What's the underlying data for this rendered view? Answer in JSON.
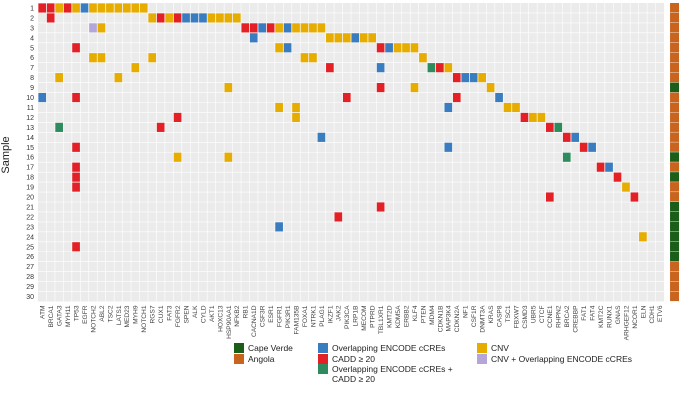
{
  "chart_data": {
    "type": "heatmap",
    "title": "",
    "ylabel": "Sample",
    "xlabel": "",
    "genes": [
      "ATM",
      "BRCA1",
      "GATA3",
      "MYH11",
      "TP53",
      "EGFR",
      "NOTCH2",
      "ABL2",
      "TSC2",
      "LATS1",
      "MED23",
      "MYH9",
      "NOTCH1",
      "RGS7",
      "CUX1",
      "FAT3",
      "FGFR2",
      "SPEN",
      "ALK",
      "CYLD",
      "AKT1",
      "HOXC13",
      "HSP90AA1",
      "NFKB2",
      "RB1",
      "CACNA1D",
      "CSF3R",
      "ESR1",
      "FGFR1",
      "PIK3R1",
      "FAM135B",
      "FOXA1",
      "NTRK1",
      "PLAG1",
      "IKZF1",
      "JAK2",
      "PIK3CA",
      "LRP1B",
      "MECOM",
      "PTPRD",
      "TBL1XR1",
      "KMT2D",
      "KDM5A",
      "ERBB2",
      "KLF4",
      "PTEN",
      "MDM4",
      "CDKN1B",
      "MAP3K4",
      "CDKN2A",
      "NF1",
      "CSF1R",
      "DNMT3A",
      "KRAS",
      "CASP8",
      "TSC1",
      "FBXW7",
      "CSMD3",
      "UBR5",
      "CTCF",
      "CCNE1",
      "RHPN2",
      "BRCA2",
      "CREBBP",
      "FAT1",
      "FAT4",
      "KMT2C",
      "RUNX1",
      "GNAS",
      "ARHGEF12",
      "NCOR1",
      "ELN",
      "CDH1",
      "ETV6"
    ],
    "samples": [
      "1",
      "2",
      "3",
      "4",
      "5",
      "6",
      "7",
      "8",
      "9",
      "10",
      "11",
      "12",
      "13",
      "14",
      "15",
      "16",
      "17",
      "18",
      "19",
      "20",
      "21",
      "22",
      "23",
      "24",
      "25",
      "26",
      "27",
      "28",
      "29",
      "30"
    ],
    "cell_codes": {
      "Y": "CNV",
      "R": "CADD ≥ 20",
      "B": "Overlapping ENCODE cCREs",
      "G": "Overlapping ENCODE cCREs + CADD ≥ 20",
      "L": "CNV + Overlapping ENCODE cCREs"
    },
    "cells": [
      [
        1,
        0,
        "R"
      ],
      [
        1,
        1,
        "R"
      ],
      [
        1,
        2,
        "Y"
      ],
      [
        1,
        3,
        "R"
      ],
      [
        1,
        4,
        "Y"
      ],
      [
        1,
        5,
        "B"
      ],
      [
        1,
        6,
        "Y"
      ],
      [
        1,
        7,
        "Y"
      ],
      [
        1,
        8,
        "Y"
      ],
      [
        1,
        9,
        "Y"
      ],
      [
        1,
        10,
        "Y"
      ],
      [
        1,
        11,
        "Y"
      ],
      [
        1,
        12,
        "Y"
      ],
      [
        2,
        1,
        "R"
      ],
      [
        2,
        13,
        "Y"
      ],
      [
        2,
        14,
        "R"
      ],
      [
        2,
        15,
        "Y"
      ],
      [
        2,
        16,
        "R"
      ],
      [
        2,
        17,
        "B"
      ],
      [
        2,
        18,
        "B"
      ],
      [
        2,
        19,
        "B"
      ],
      [
        2,
        20,
        "Y"
      ],
      [
        2,
        21,
        "Y"
      ],
      [
        2,
        22,
        "Y"
      ],
      [
        2,
        23,
        "Y"
      ],
      [
        3,
        6,
        "L"
      ],
      [
        3,
        7,
        "Y"
      ],
      [
        3,
        24,
        "R"
      ],
      [
        3,
        25,
        "R"
      ],
      [
        3,
        26,
        "B"
      ],
      [
        3,
        27,
        "R"
      ],
      [
        3,
        28,
        "Y"
      ],
      [
        3,
        29,
        "B"
      ],
      [
        3,
        30,
        "Y"
      ],
      [
        3,
        31,
        "Y"
      ],
      [
        3,
        32,
        "Y"
      ],
      [
        3,
        33,
        "Y"
      ],
      [
        4,
        25,
        "B"
      ],
      [
        4,
        34,
        "Y"
      ],
      [
        4,
        35,
        "Y"
      ],
      [
        4,
        36,
        "Y"
      ],
      [
        4,
        37,
        "B"
      ],
      [
        4,
        38,
        "Y"
      ],
      [
        4,
        39,
        "Y"
      ],
      [
        5,
        4,
        "R"
      ],
      [
        5,
        28,
        "Y"
      ],
      [
        5,
        29,
        "B"
      ],
      [
        5,
        40,
        "R"
      ],
      [
        5,
        41,
        "B"
      ],
      [
        5,
        42,
        "Y"
      ],
      [
        5,
        43,
        "Y"
      ],
      [
        5,
        44,
        "Y"
      ],
      [
        6,
        6,
        "Y"
      ],
      [
        6,
        7,
        "Y"
      ],
      [
        6,
        13,
        "Y"
      ],
      [
        6,
        31,
        "Y"
      ],
      [
        6,
        32,
        "Y"
      ],
      [
        6,
        45,
        "Y"
      ],
      [
        7,
        11,
        "Y"
      ],
      [
        7,
        34,
        "R"
      ],
      [
        7,
        40,
        "B"
      ],
      [
        7,
        46,
        "G"
      ],
      [
        7,
        47,
        "R"
      ],
      [
        7,
        48,
        "Y"
      ],
      [
        8,
        2,
        "Y"
      ],
      [
        8,
        9,
        "Y"
      ],
      [
        8,
        49,
        "R"
      ],
      [
        8,
        50,
        "B"
      ],
      [
        8,
        51,
        "B"
      ],
      [
        8,
        52,
        "Y"
      ],
      [
        9,
        22,
        "Y"
      ],
      [
        9,
        40,
        "R"
      ],
      [
        9,
        44,
        "Y"
      ],
      [
        9,
        53,
        "Y"
      ],
      [
        10,
        0,
        "B"
      ],
      [
        10,
        4,
        "R"
      ],
      [
        10,
        36,
        "R"
      ],
      [
        10,
        49,
        "R"
      ],
      [
        10,
        54,
        "B"
      ],
      [
        11,
        28,
        "Y"
      ],
      [
        11,
        30,
        "Y"
      ],
      [
        11,
        48,
        "B"
      ],
      [
        11,
        55,
        "Y"
      ],
      [
        11,
        56,
        "Y"
      ],
      [
        12,
        16,
        "R"
      ],
      [
        12,
        30,
        "Y"
      ],
      [
        12,
        57,
        "R"
      ],
      [
        12,
        58,
        "Y"
      ],
      [
        12,
        59,
        "Y"
      ],
      [
        13,
        2,
        "G"
      ],
      [
        13,
        14,
        "R"
      ],
      [
        13,
        60,
        "R"
      ],
      [
        13,
        61,
        "G"
      ],
      [
        14,
        33,
        "B"
      ],
      [
        14,
        62,
        "R"
      ],
      [
        14,
        63,
        "B"
      ],
      [
        15,
        4,
        "R"
      ],
      [
        15,
        48,
        "B"
      ],
      [
        15,
        64,
        "R"
      ],
      [
        15,
        65,
        "B"
      ],
      [
        16,
        16,
        "Y"
      ],
      [
        16,
        22,
        "Y"
      ],
      [
        16,
        62,
        "G"
      ],
      [
        17,
        4,
        "R"
      ],
      [
        17,
        66,
        "R"
      ],
      [
        17,
        67,
        "B"
      ],
      [
        18,
        4,
        "R"
      ],
      [
        18,
        68,
        "R"
      ],
      [
        19,
        4,
        "R"
      ],
      [
        19,
        69,
        "Y"
      ],
      [
        20,
        60,
        "R"
      ],
      [
        20,
        70,
        "R"
      ],
      [
        21,
        40,
        "R"
      ],
      [
        22,
        35,
        "R"
      ],
      [
        23,
        28,
        "B"
      ],
      [
        24,
        71,
        "Y"
      ],
      [
        25,
        4,
        "R"
      ]
    ],
    "annotation": {
      "country_by_sample": [
        "Angola",
        "Angola",
        "Angola",
        "Angola",
        "Angola",
        "Angola",
        "Angola",
        "Angola",
        "Cape Verde",
        "Angola",
        "Angola",
        "Angola",
        "Angola",
        "Angola",
        "Angola",
        "Cape Verde",
        "Angola",
        "Cape Verde",
        "Angola",
        "Angola",
        "Cape Verde",
        "Cape Verde",
        "Cape Verde",
        "Cape Verde",
        "Cape Verde",
        "Cape Verde",
        "Angola",
        "Angola",
        "Angola",
        "Angola"
      ],
      "colors": {
        "Cape Verde": "#1a5e1a",
        "Angola": "#c9641e"
      }
    },
    "colors": {
      "Y": "#e6ac00",
      "R": "#e32026",
      "B": "#3a7cc0",
      "G": "#2e8b5e",
      "L": "#b4a6d9",
      "background": "#ebebeb",
      "grid": "#ffffff"
    }
  },
  "legend": {
    "annotation": [
      {
        "label": "Cape Verde",
        "color": "#1a5e1a"
      },
      {
        "label": "Angola",
        "color": "#c9641e"
      }
    ],
    "variants_col1": [
      {
        "label": "Overlapping ENCODE cCREs",
        "color": "#3a7cc0"
      },
      {
        "label": "CADD ≥ 20",
        "color": "#e32026"
      },
      {
        "label": "Overlapping ENCODE cCREs +\nCADD ≥ 20",
        "color": "#2e8b5e"
      }
    ],
    "variants_col2": [
      {
        "label": "CNV",
        "color": "#e6ac00"
      },
      {
        "label": "CNV + Overlapping ENCODE cCREs",
        "color": "#b4a6d9"
      }
    ]
  }
}
